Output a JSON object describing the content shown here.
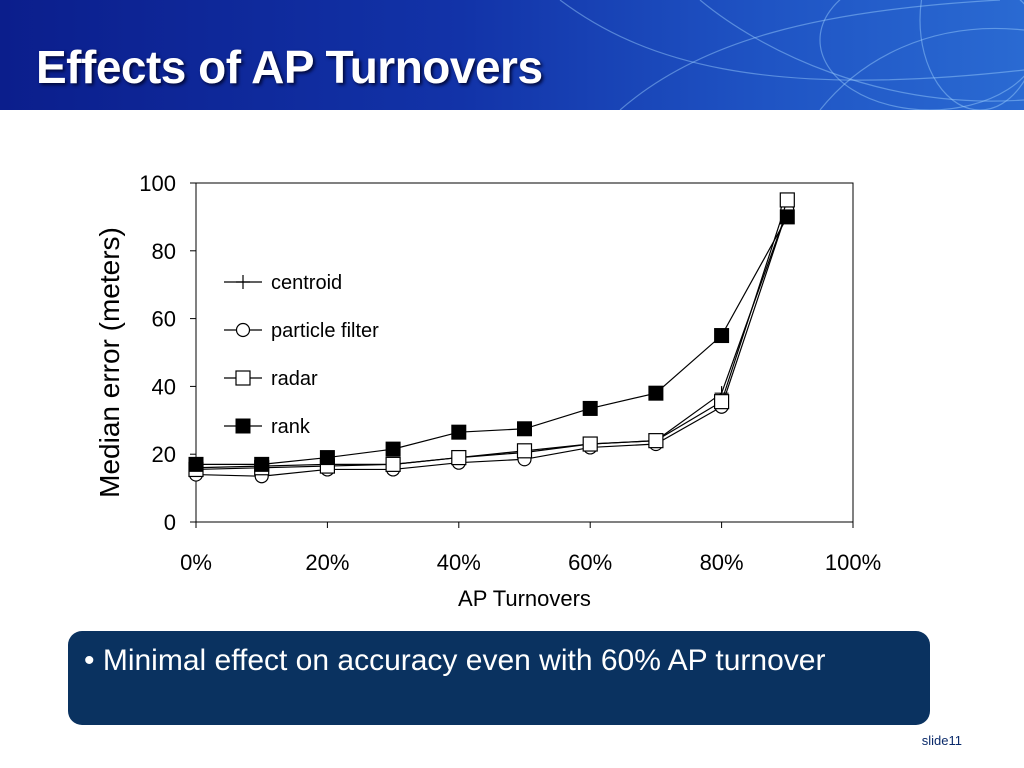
{
  "slide": {
    "title": "Effects of AP Turnovers",
    "bullet": "• Minimal effect on accuracy even with 60% AP turnover",
    "slide_number": "slide11",
    "accent_color": "#0a3260",
    "banner_color": "#1233a8"
  },
  "chart_data": {
    "type": "line",
    "xlabel": "AP Turnovers",
    "ylabel": "Median error (meters)",
    "xlim": [
      0,
      100
    ],
    "ylim": [
      0,
      100
    ],
    "xticks": [
      0,
      20,
      40,
      60,
      80,
      100
    ],
    "xtick_labels": [
      "0%",
      "20%",
      "40%",
      "60%",
      "80%",
      "100%"
    ],
    "yticks": [
      0,
      20,
      40,
      60,
      80,
      100
    ],
    "ytick_labels": [
      "0",
      "20",
      "40",
      "60",
      "80",
      "100"
    ],
    "grid": false,
    "legend_position": "upper-left inside plot",
    "x": [
      0,
      10,
      20,
      30,
      40,
      50,
      60,
      70,
      80,
      90
    ],
    "series": [
      {
        "name": "centroid",
        "marker": "plus",
        "values": [
          16,
          16.5,
          17,
          17,
          19,
          20.5,
          23,
          24,
          38,
          92
        ]
      },
      {
        "name": "particle filter",
        "marker": "circle",
        "values": [
          14,
          13.5,
          15.5,
          15.5,
          17.5,
          18.5,
          22,
          23,
          34,
          92
        ]
      },
      {
        "name": "radar",
        "marker": "square-open",
        "values": [
          15.5,
          16,
          16.5,
          17,
          19,
          21,
          23,
          24,
          35.5,
          95
        ]
      },
      {
        "name": "rank",
        "marker": "square-filled",
        "values": [
          17,
          17,
          19,
          21.5,
          26.5,
          27.5,
          33.5,
          38,
          55,
          90
        ]
      }
    ]
  }
}
